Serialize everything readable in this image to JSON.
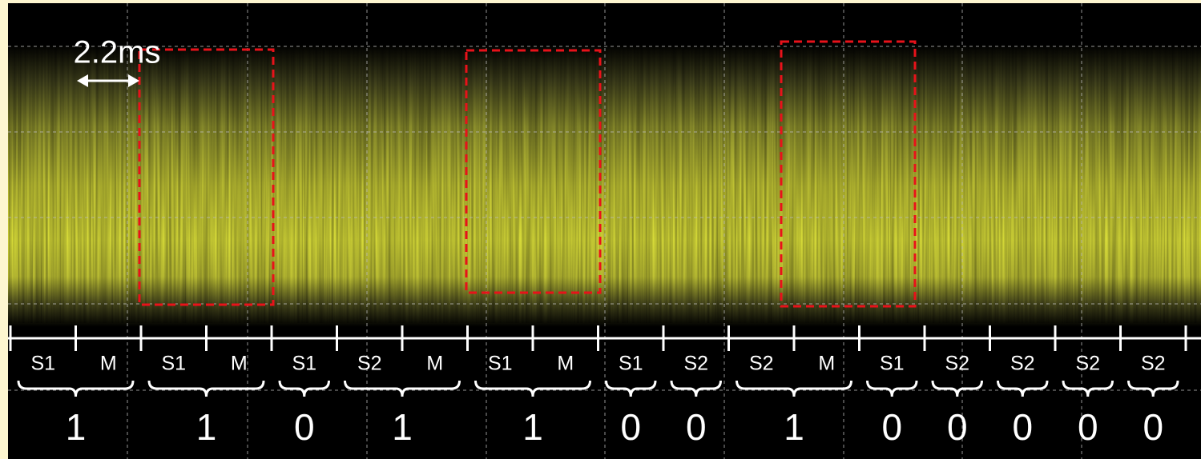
{
  "scale_label": "2.2ms",
  "groups": [
    {
      "labels": [
        "S1",
        "M"
      ],
      "bit": "1"
    },
    {
      "labels": [
        "S1",
        "M"
      ],
      "bit": "1"
    },
    {
      "labels": [
        "S1"
      ],
      "bit": "0"
    },
    {
      "labels": [
        "S2",
        "M"
      ],
      "bit": "1"
    },
    {
      "labels": [
        "S1",
        "M"
      ],
      "bit": "1"
    },
    {
      "labels": [
        "S1"
      ],
      "bit": "0"
    },
    {
      "labels": [
        "S2"
      ],
      "bit": "0"
    },
    {
      "labels": [
        "S2",
        "M"
      ],
      "bit": "1"
    },
    {
      "labels": [
        "S1"
      ],
      "bit": "0"
    },
    {
      "labels": [
        "S2"
      ],
      "bit": "0"
    },
    {
      "labels": [
        "S2"
      ],
      "bit": "0"
    },
    {
      "labels": [
        "S2"
      ],
      "bit": "0"
    },
    {
      "labels": [
        "S2"
      ],
      "bit": "0"
    }
  ]
}
